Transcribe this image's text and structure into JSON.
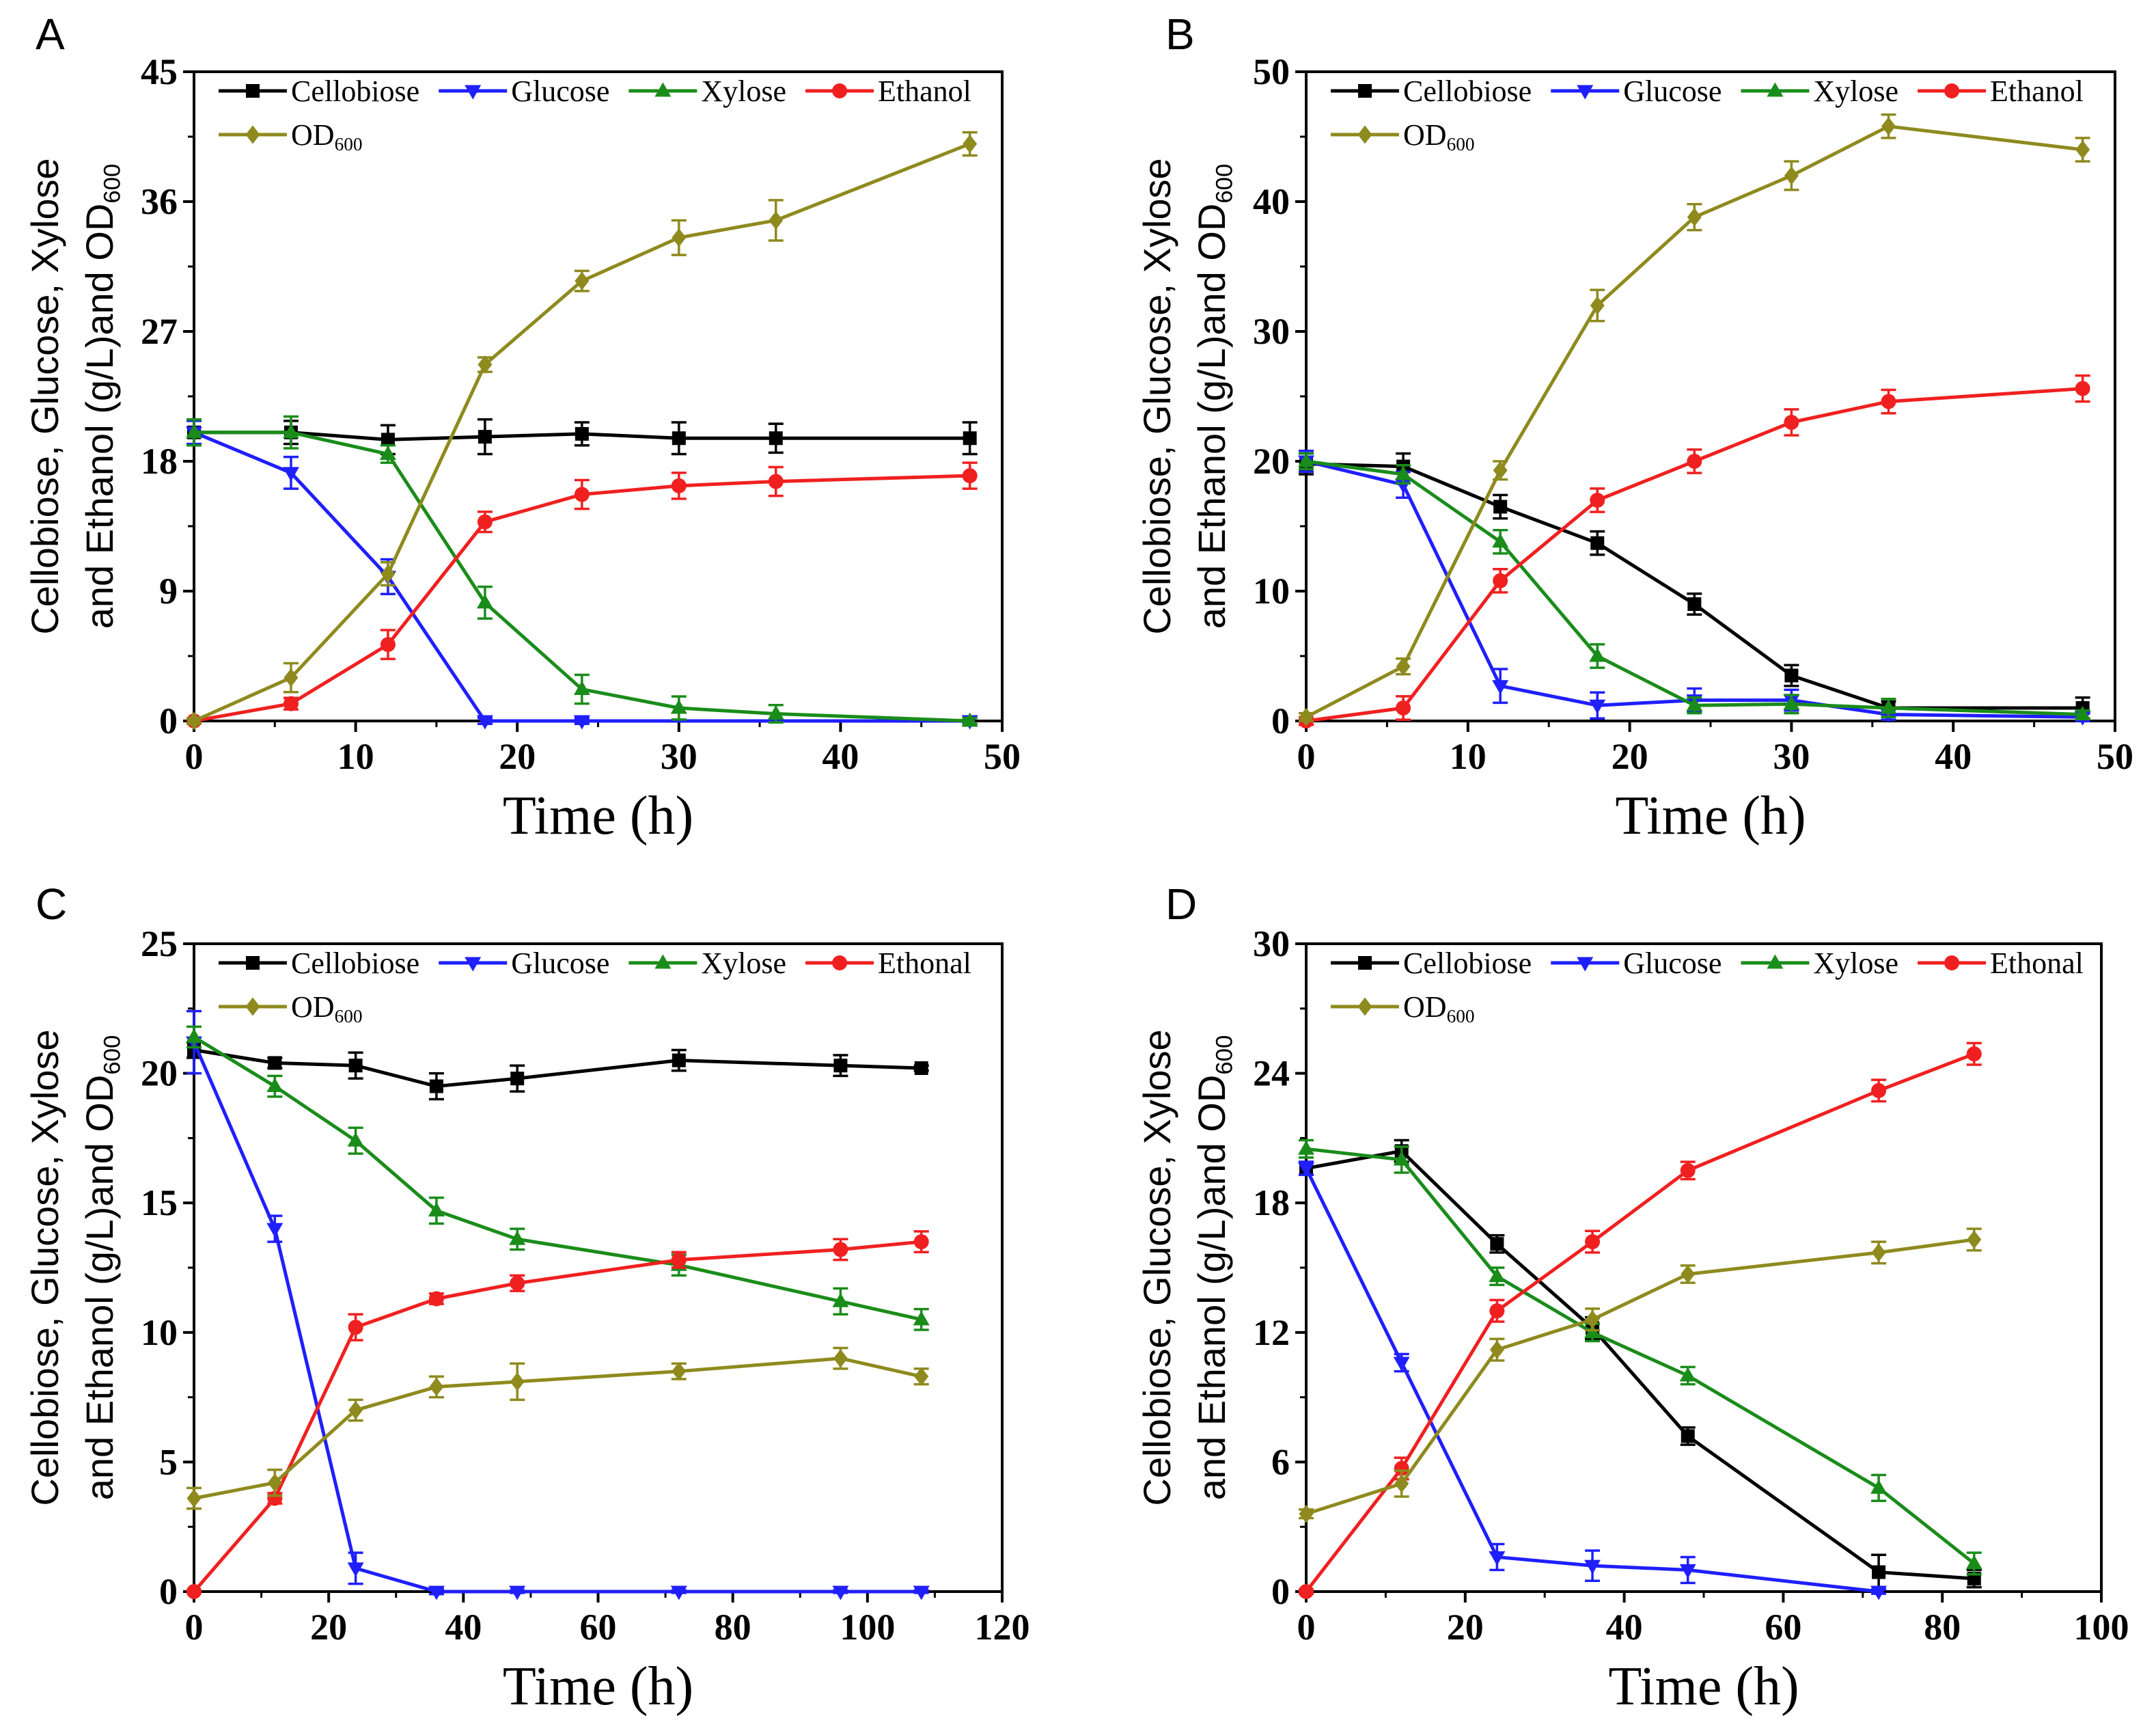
{
  "chart_data": [
    {
      "panel": "A",
      "type": "line",
      "xlabel": "Time (h)",
      "ylabel": {
        "line1": "Cellobiose, Glucose, Xylose",
        "line2": "and Ethanol (g/L)and OD",
        "line2_sub": "600"
      },
      "xlim": [
        0,
        50
      ],
      "ylim": [
        0,
        45
      ],
      "xticks": [
        0,
        10,
        20,
        30,
        40,
        50
      ],
      "yticks": [
        0,
        9,
        18,
        27,
        36,
        45
      ],
      "grid": false,
      "legend": "top-left",
      "series": [
        {
          "name": "Cellobiose",
          "color": "#000000",
          "marker": "square",
          "x": [
            0,
            6,
            12,
            18,
            24,
            30,
            36,
            48
          ],
          "y": [
            20,
            20,
            19.5,
            19.7,
            19.9,
            19.6,
            19.6,
            19.6
          ],
          "err": [
            0.9,
            0.8,
            1.0,
            1.2,
            0.8,
            1.1,
            1.0,
            1.1
          ]
        },
        {
          "name": "Glucose",
          "color": "#1f1fff",
          "marker": "triangle-down",
          "x": [
            0,
            6,
            12,
            18,
            24,
            48
          ],
          "y": [
            20,
            17.2,
            10,
            0,
            0,
            0
          ],
          "err": [
            0.8,
            1.1,
            1.2,
            0.2,
            0.2,
            0.2
          ]
        },
        {
          "name": "Xylose",
          "color": "#1a8c1a",
          "marker": "triangle-up",
          "x": [
            0,
            6,
            12,
            18,
            24,
            30,
            36,
            48
          ],
          "y": [
            20,
            20,
            18.5,
            8.2,
            2.2,
            0.9,
            0.5,
            0
          ],
          "err": [
            0.9,
            1.1,
            0.6,
            1.1,
            1.0,
            0.8,
            0.6,
            0.2
          ]
        },
        {
          "name": "Ethanol",
          "color": "#f02020",
          "marker": "circle",
          "x": [
            0,
            6,
            12,
            18,
            24,
            30,
            36,
            48
          ],
          "y": [
            0,
            1.2,
            5.3,
            13.8,
            15.7,
            16.3,
            16.6,
            17
          ],
          "err": [
            0.2,
            0.4,
            1.0,
            0.7,
            1.0,
            0.9,
            1.0,
            0.9
          ]
        },
        {
          "name": "OD",
          "sub": "600",
          "color": "#8e8a1e",
          "marker": "diamond",
          "x": [
            0,
            6,
            12,
            18,
            24,
            30,
            36,
            48
          ],
          "y": [
            0,
            3,
            10.2,
            24.7,
            30.5,
            33.5,
            34.7,
            40
          ],
          "err": [
            0.2,
            1.0,
            0.8,
            0.5,
            0.7,
            1.2,
            1.4,
            0.8
          ]
        }
      ]
    },
    {
      "panel": "B",
      "type": "line",
      "xlabel": "Time (h)",
      "ylabel": {
        "line1": "Cellobiose, Glucose, Xylose",
        "line2": "and Ethanol (g/L)and OD",
        "line2_sub": "600"
      },
      "xlim": [
        0,
        50
      ],
      "ylim": [
        0,
        50
      ],
      "xticks": [
        0,
        10,
        20,
        30,
        40,
        50
      ],
      "yticks": [
        0,
        10,
        20,
        30,
        40,
        50
      ],
      "grid": false,
      "legend": "top-left",
      "series": [
        {
          "name": "Cellobiose",
          "color": "#000000",
          "marker": "square",
          "x": [
            0,
            6,
            12,
            18,
            24,
            30,
            36,
            48
          ],
          "y": [
            19.8,
            19.6,
            16.5,
            13.7,
            9,
            3.5,
            1,
            1
          ],
          "err": [
            0.8,
            1.0,
            0.9,
            0.9,
            0.8,
            0.8,
            0.5,
            0.8
          ]
        },
        {
          "name": "Glucose",
          "color": "#1f1fff",
          "marker": "triangle-down",
          "x": [
            0,
            6,
            12,
            18,
            24,
            30,
            36,
            48
          ],
          "y": [
            20,
            18.2,
            2.7,
            1.2,
            1.6,
            1.6,
            0.5,
            0.3
          ],
          "err": [
            0.8,
            1.0,
            1.3,
            1.0,
            0.9,
            0.8,
            0.4,
            0.3
          ]
        },
        {
          "name": "Xylose",
          "color": "#1a8c1a",
          "marker": "triangle-up",
          "x": [
            0,
            6,
            12,
            18,
            24,
            30,
            36,
            48
          ],
          "y": [
            20,
            19,
            13.8,
            5,
            1.2,
            1.3,
            1,
            0.5
          ],
          "err": [
            0.6,
            0.7,
            0.9,
            0.9,
            0.6,
            0.7,
            0.7,
            0.3
          ]
        },
        {
          "name": "Ethanol",
          "color": "#f02020",
          "marker": "circle",
          "x": [
            0,
            6,
            12,
            18,
            24,
            30,
            36,
            48
          ],
          "y": [
            0,
            1,
            10.8,
            17,
            20,
            23,
            24.6,
            25.6
          ],
          "err": [
            0.3,
            0.9,
            0.9,
            0.9,
            0.9,
            1.0,
            0.9,
            1.0
          ]
        },
        {
          "name": "OD",
          "sub": "600",
          "color": "#8e8a1e",
          "marker": "diamond",
          "x": [
            0,
            6,
            12,
            18,
            24,
            30,
            36,
            48
          ],
          "y": [
            0.3,
            4.2,
            19.3,
            32,
            38.8,
            42,
            45.8,
            44
          ],
          "err": [
            0.3,
            0.6,
            0.7,
            1.2,
            1.0,
            1.1,
            0.9,
            0.9
          ]
        }
      ]
    },
    {
      "panel": "C",
      "type": "line",
      "xlabel": "Time (h)",
      "ylabel": {
        "line1": "Cellobiose, Glucose, Xylose",
        "line2": "and Ethanol (g/L)and OD",
        "line2_sub": "600"
      },
      "xlim": [
        0,
        120
      ],
      "ylim": [
        0,
        25
      ],
      "xticks": [
        0,
        20,
        40,
        60,
        80,
        100,
        120
      ],
      "yticks": [
        0,
        5,
        10,
        15,
        20,
        25
      ],
      "grid": false,
      "legend": "top-left",
      "series": [
        {
          "name": "Cellobiose",
          "color": "#000000",
          "marker": "square",
          "x": [
            0,
            12,
            24,
            36,
            48,
            72,
            96,
            108
          ],
          "y": [
            20.9,
            20.4,
            20.3,
            19.5,
            19.8,
            20.5,
            20.3,
            20.2
          ],
          "err": [
            0.3,
            0.2,
            0.5,
            0.5,
            0.5,
            0.4,
            0.4,
            0.1
          ]
        },
        {
          "name": "Glucose",
          "color": "#1f1fff",
          "marker": "triangle-down",
          "x": [
            0,
            12,
            24,
            36,
            48,
            72,
            96,
            108
          ],
          "y": [
            21.2,
            14,
            0.9,
            0,
            0,
            0,
            0,
            0
          ],
          "err": [
            1.2,
            0.5,
            0.6,
            0.1,
            0.05,
            0.05,
            0.05,
            0.05
          ]
        },
        {
          "name": "Xylose",
          "color": "#1a8c1a",
          "marker": "triangle-up",
          "x": [
            0,
            12,
            24,
            36,
            48,
            72,
            96,
            108
          ],
          "y": [
            21.4,
            19.5,
            17.4,
            14.7,
            13.6,
            12.6,
            11.2,
            10.5
          ],
          "err": [
            0.4,
            0.4,
            0.5,
            0.5,
            0.4,
            0.4,
            0.5,
            0.4
          ]
        },
        {
          "name": "Ethonal",
          "color": "#f02020",
          "marker": "circle",
          "x": [
            0,
            12,
            24,
            36,
            48,
            72,
            96,
            108
          ],
          "y": [
            0,
            3.6,
            10.2,
            11.3,
            11.9,
            12.8,
            13.2,
            13.5
          ],
          "err": [
            0.05,
            0.2,
            0.5,
            0.2,
            0.3,
            0.3,
            0.4,
            0.4
          ]
        },
        {
          "name": "OD",
          "sub": "600",
          "color": "#8e8a1e",
          "marker": "diamond",
          "x": [
            0,
            12,
            24,
            36,
            48,
            72,
            96,
            108
          ],
          "y": [
            3.6,
            4.2,
            7,
            7.9,
            8.1,
            8.5,
            9,
            8.3
          ],
          "err": [
            0.4,
            0.5,
            0.4,
            0.4,
            0.7,
            0.3,
            0.4,
            0.3
          ]
        }
      ]
    },
    {
      "panel": "D",
      "type": "line",
      "xlabel": "Time (h)",
      "ylabel": {
        "line1": "Cellobiose, Glucose, Xylose",
        "line2": "and Ethanol (g/L)and OD",
        "line2_sub": "600"
      },
      "xlim": [
        0,
        100
      ],
      "ylim": [
        0,
        30
      ],
      "xticks": [
        0,
        20,
        40,
        60,
        80,
        100
      ],
      "yticks": [
        0,
        6,
        12,
        18,
        24,
        30
      ],
      "grid": false,
      "legend": "top-left",
      "series": [
        {
          "name": "Cellobiose",
          "color": "#000000",
          "marker": "square",
          "x": [
            0,
            12,
            24,
            36,
            48,
            72,
            84
          ],
          "y": [
            19.6,
            20.4,
            16.1,
            12.2,
            7.2,
            0.9,
            0.6
          ],
          "err": [
            0.3,
            0.5,
            0.4,
            0.5,
            0.4,
            0.8,
            0.4
          ]
        },
        {
          "name": "Glucose",
          "color": "#1f1fff",
          "marker": "triangle-down",
          "x": [
            0,
            12,
            24,
            36,
            48,
            72
          ],
          "y": [
            19.6,
            10.6,
            1.6,
            1.2,
            1,
            0
          ],
          "err": [
            0.3,
            0.4,
            0.6,
            0.7,
            0.6,
            0.1
          ]
        },
        {
          "name": "Xylose",
          "color": "#1a8c1a",
          "marker": "triangle-up",
          "x": [
            0,
            12,
            24,
            36,
            48,
            72,
            84
          ],
          "y": [
            20.5,
            20,
            14.6,
            12,
            10,
            4.8,
            1.3
          ],
          "err": [
            0.4,
            0.6,
            0.4,
            0.4,
            0.4,
            0.6,
            0.5
          ]
        },
        {
          "name": "Ethonal",
          "color": "#f02020",
          "marker": "circle",
          "x": [
            0,
            12,
            24,
            36,
            48,
            72,
            84
          ],
          "y": [
            0,
            5.7,
            13,
            16.2,
            19.5,
            23.2,
            24.9
          ],
          "err": [
            0.1,
            0.5,
            0.5,
            0.5,
            0.4,
            0.5,
            0.5
          ]
        },
        {
          "name": "OD",
          "sub": "600",
          "color": "#8e8a1e",
          "marker": "diamond",
          "x": [
            0,
            12,
            24,
            36,
            48,
            72,
            84
          ],
          "y": [
            3.6,
            5,
            11.2,
            12.6,
            14.7,
            15.7,
            16.3
          ],
          "err": [
            0.2,
            0.6,
            0.5,
            0.5,
            0.4,
            0.5,
            0.5
          ]
        }
      ]
    }
  ]
}
